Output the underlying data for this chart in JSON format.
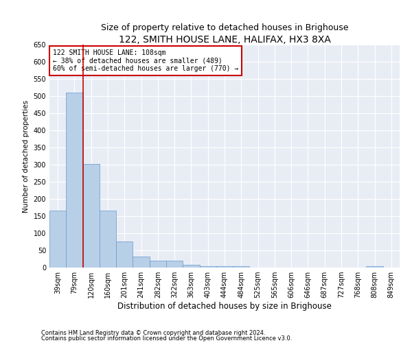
{
  "title": "122, SMITH HOUSE LANE, HALIFAX, HX3 8XA",
  "subtitle": "Size of property relative to detached houses in Brighouse",
  "xlabel": "Distribution of detached houses by size in Brighouse",
  "ylabel": "Number of detached properties",
  "categories": [
    "39sqm",
    "79sqm",
    "120sqm",
    "160sqm",
    "201sqm",
    "241sqm",
    "282sqm",
    "322sqm",
    "363sqm",
    "403sqm",
    "444sqm",
    "484sqm",
    "525sqm",
    "565sqm",
    "606sqm",
    "646sqm",
    "687sqm",
    "727sqm",
    "768sqm",
    "808sqm",
    "849sqm"
  ],
  "values": [
    167,
    510,
    302,
    167,
    76,
    33,
    20,
    20,
    8,
    4,
    4,
    4,
    0,
    0,
    0,
    0,
    0,
    0,
    0,
    4,
    0
  ],
  "bar_color": "#b8cfe8",
  "bar_edge_color": "#6699cc",
  "marker_line_index": 2,
  "marker_line_color": "#cc0000",
  "annotation_text": "122 SMITH HOUSE LANE: 108sqm\n← 38% of detached houses are smaller (489)\n60% of semi-detached houses are larger (770) →",
  "annotation_box_color": "#ffffff",
  "annotation_box_edge_color": "#cc0000",
  "footnote1": "Contains HM Land Registry data © Crown copyright and database right 2024.",
  "footnote2": "Contains public sector information licensed under the Open Government Licence v3.0.",
  "ylim": [
    0,
    650
  ],
  "yticks": [
    0,
    50,
    100,
    150,
    200,
    250,
    300,
    350,
    400,
    450,
    500,
    550,
    600,
    650
  ],
  "plot_bg_color": "#e8edf5",
  "fig_bg_color": "#ffffff",
  "title_fontsize": 10,
  "subtitle_fontsize": 9,
  "ylabel_fontsize": 7.5,
  "xlabel_fontsize": 8.5,
  "tick_fontsize": 7,
  "annotation_fontsize": 7,
  "footnote_fontsize": 6
}
